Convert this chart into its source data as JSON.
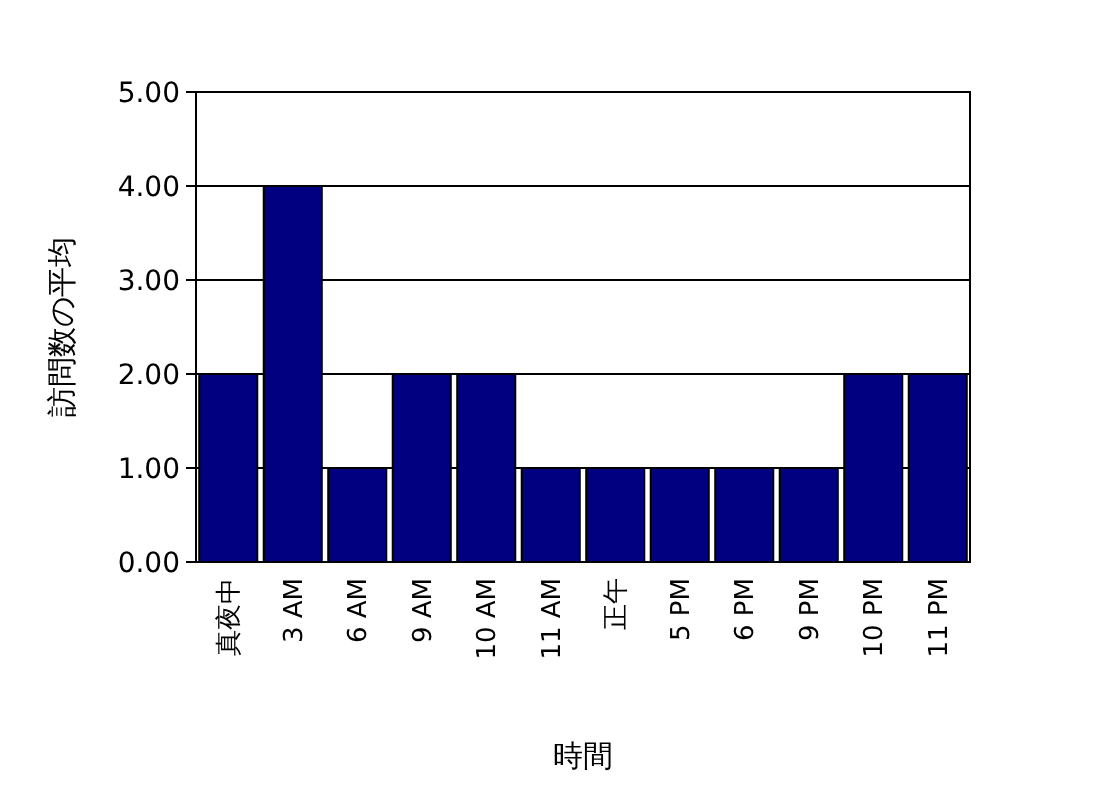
{
  "chart_data": {
    "type": "bar",
    "xlabel": "時間",
    "ylabel": "訪問数の平均",
    "categories": [
      "真夜中",
      "3 AM",
      "6 AM",
      "9 AM",
      "10 AM",
      "11 AM",
      "正午",
      "5 PM",
      "6 PM",
      "9 PM",
      "10 PM",
      "11 PM"
    ],
    "values": [
      2,
      4,
      1,
      2,
      2,
      1,
      1,
      1,
      1,
      1,
      2,
      2
    ],
    "color": "#000080",
    "ylim": [
      0,
      5
    ],
    "yticks": [
      {
        "value": 0,
        "label": "0.00"
      },
      {
        "value": 1,
        "label": "1.00"
      },
      {
        "value": 2,
        "label": "2.00"
      },
      {
        "value": 3,
        "label": "3.00"
      },
      {
        "value": 4,
        "label": "4.00"
      },
      {
        "value": 5,
        "label": "5.00"
      }
    ],
    "grid": "y"
  }
}
